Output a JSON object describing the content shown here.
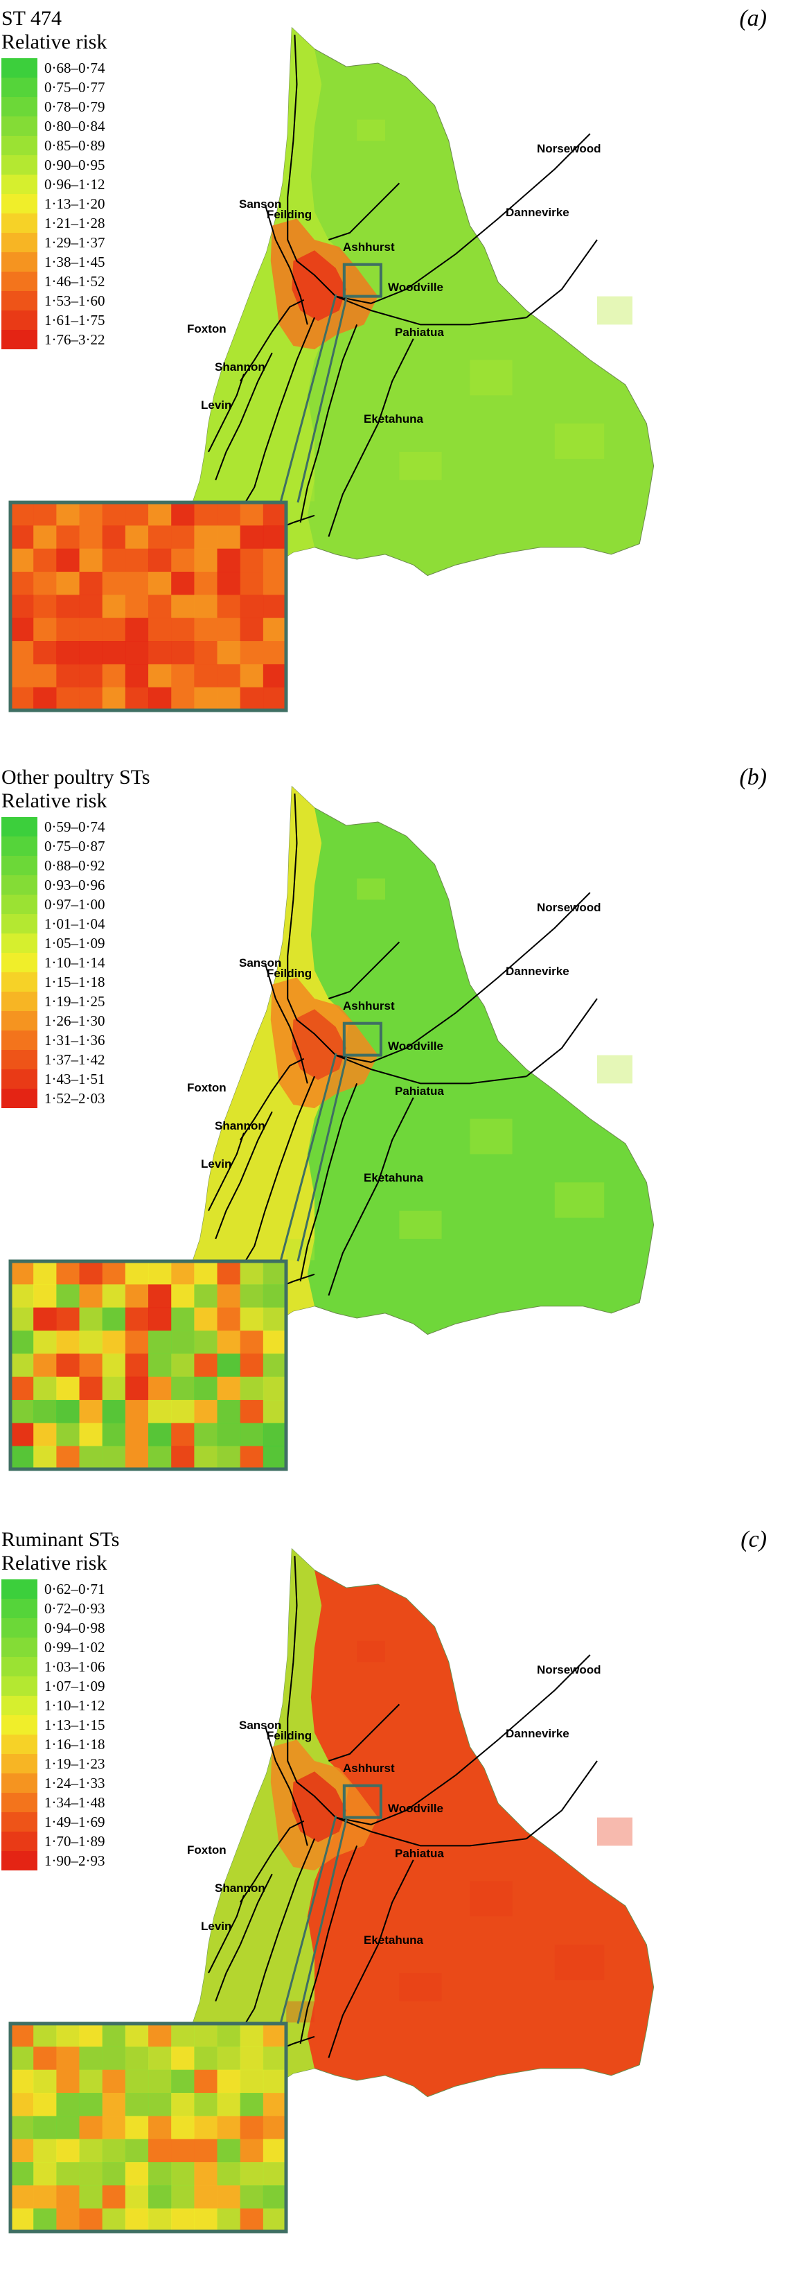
{
  "panels": [
    {
      "label": "(a)",
      "title_line1": "ST 474",
      "title_line2": "Relative risk",
      "ranges": [
        "0·68–0·74",
        "0·75–0·77",
        "0·78–0·79",
        "0·80–0·84",
        "0·85–0·89",
        "0·90–0·95",
        "0·96–1·12",
        "1·13–1·20",
        "1·21–1·28",
        "1·29–1·37",
        "1·38–1·45",
        "1·46–1·52",
        "1·53–1·60",
        "1·61–1·75",
        "1·76–3·22"
      ],
      "colors": [
        "#3ccf3c",
        "#55d43a",
        "#6cd838",
        "#84dc36",
        "#9be233",
        "#b4e831",
        "#d6ef2e",
        "#f0ee2a",
        "#f6d227",
        "#f7b524",
        "#f59420",
        "#f3741c",
        "#ee5418",
        "#e93a16",
        "#e42414"
      ],
      "map_fill_main": "#8edd37",
      "map_fill_west": "#b0e632",
      "map_fill_hot": "#f07a1e",
      "map_fill_core": "#e83a17"
    },
    {
      "label": "(b)",
      "title_line1": "Other poultry STs",
      "title_line2": "Relative risk",
      "ranges": [
        "0·59–0·74",
        "0·75–0·87",
        "0·88–0·92",
        "0·93–0·96",
        "0·97–1·00",
        "1·01–1·04",
        "1·05–1·09",
        "1·10–1·14",
        "1·15–1·18",
        "1·19–1·25",
        "1·26–1·30",
        "1·31–1·36",
        "1·37–1·42",
        "1·43–1·51",
        "1·52–2·03"
      ],
      "colors": [
        "#3ccf3c",
        "#55d43a",
        "#6cd838",
        "#84dc36",
        "#9be233",
        "#b4e831",
        "#d6ef2e",
        "#f0ee2a",
        "#f6d227",
        "#f7b524",
        "#f59420",
        "#f3741c",
        "#ee5418",
        "#e93a16",
        "#e42414"
      ],
      "map_fill_main": "#6fd73a",
      "map_fill_west": "#e9e52b",
      "map_fill_hot": "#f28a20",
      "map_fill_core": "#e84e19"
    },
    {
      "label": "(c)",
      "title_line1": "Ruminant STs",
      "title_line2": "Relative risk",
      "ranges": [
        "0·62–0·71",
        "0·72–0·93",
        "0·94–0·98",
        "0·99–1·02",
        "1·03–1·06",
        "1·07–1·09",
        "1·10–1·12",
        "1·13–1·15",
        "1·16–1·18",
        "1·19–1·23",
        "1·24–1·33",
        "1·34–1·48",
        "1·49–1·69",
        "1·70–1·89",
        "1·90–2·93"
      ],
      "colors": [
        "#3ccf3c",
        "#55d43a",
        "#6cd838",
        "#84dc36",
        "#9be233",
        "#b4e831",
        "#d6ef2e",
        "#f0ee2a",
        "#f6d227",
        "#f7b524",
        "#f59420",
        "#f3741c",
        "#ee5418",
        "#e93a16",
        "#e42414"
      ],
      "map_fill_main": "#ea4a18",
      "map_fill_west": "#aee532",
      "map_fill_hot": "#f08a20",
      "map_fill_core": "#e33a16"
    }
  ],
  "towns": {
    "norsewood": "Norsewood",
    "dannevirke": "Dannevirke",
    "sanson": "Sanson",
    "feilding": "Feilding",
    "ashhurst": "Ashhurst",
    "woodville": "Woodville",
    "foxton": "Foxton",
    "pahiatua": "Pahiatua",
    "shannon": "Shannon",
    "levin": "Levin",
    "eketahuna": "Eketahuna"
  },
  "colors": {
    "inset_box": "#3f6f63",
    "roads": "#000000"
  }
}
